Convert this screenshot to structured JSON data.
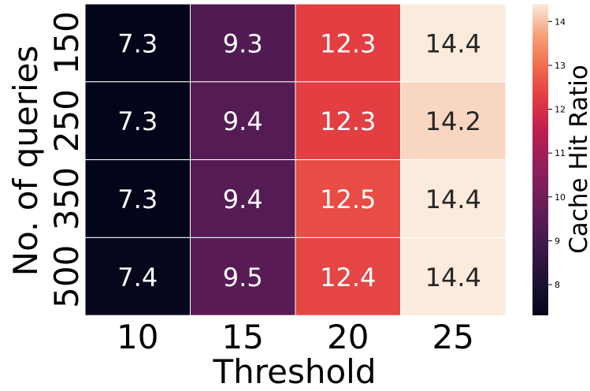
{
  "chart_data": {
    "type": "heatmap",
    "xlabel": "Threshold",
    "ylabel": "No. of queries",
    "colorbar_label": "Cache Hit Ratio",
    "x_categories": [
      "10",
      "15",
      "20",
      "25"
    ],
    "y_categories": [
      "150",
      "250",
      "350",
      "500"
    ],
    "values": [
      [
        7.3,
        9.3,
        12.3,
        14.4
      ],
      [
        7.3,
        9.4,
        12.3,
        14.2
      ],
      [
        7.3,
        9.4,
        12.5,
        14.4
      ],
      [
        7.4,
        9.5,
        12.4,
        14.4
      ]
    ],
    "value_labels": [
      [
        "7.3",
        "9.3",
        "12.3",
        "14.4"
      ],
      [
        "7.3",
        "9.4",
        "12.3",
        "14.2"
      ],
      [
        "7.3",
        "9.4",
        "12.5",
        "14.4"
      ],
      [
        "7.4",
        "9.5",
        "12.4",
        "14.4"
      ]
    ],
    "colorbar_range": [
      7.3,
      14.4
    ],
    "colorbar_ticks": [
      8,
      9,
      10,
      11,
      12,
      13,
      14
    ],
    "colorbar_tick_labels": [
      "8",
      "9",
      "10",
      "11",
      "12",
      "13",
      "14"
    ],
    "colormap": "rocket",
    "light_text_color": "#ffffff",
    "dark_text_color": "#262626",
    "grid": false
  }
}
